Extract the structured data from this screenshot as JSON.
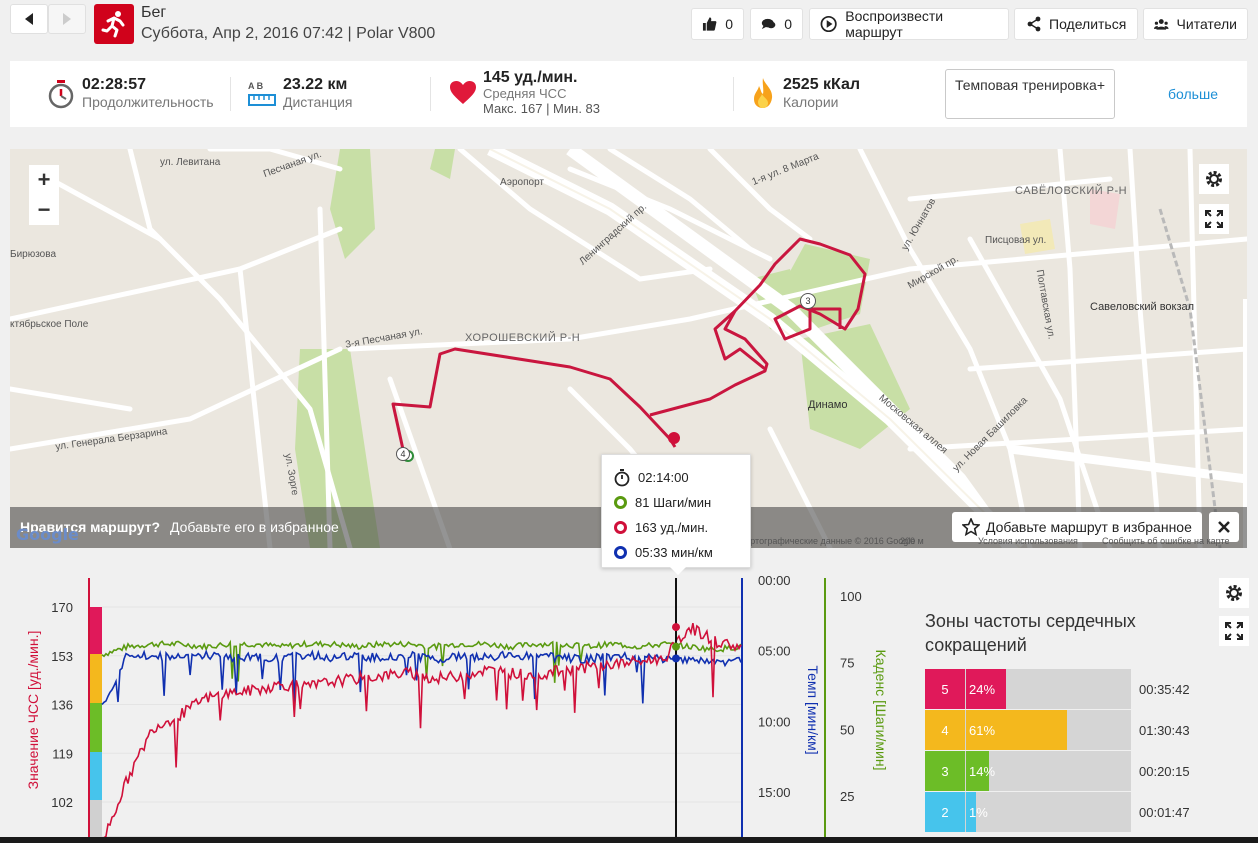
{
  "header": {
    "title": "Бег",
    "subtitle": "Суббота, Апр 2, 2016 07:42 | Polar V800",
    "likes": "0",
    "comments": "0",
    "play_route": "Воспроизвести маршрут",
    "share": "Поделиться",
    "readers": "Читатели",
    "icons": [
      "back-icon",
      "forward-icon",
      "running-icon",
      "thumbs-up-icon",
      "comment-icon",
      "play-icon",
      "share-icon",
      "readers-icon"
    ]
  },
  "summary": {
    "duration": {
      "value": "02:28:57",
      "label": "Продолжительность"
    },
    "distance": {
      "value": "23.22 км",
      "label": "Дистанция",
      "ab": "A  B"
    },
    "hr": {
      "value": "145 уд./мин.",
      "label": "Средняя ЧСС",
      "extra": "Макс. 167  |  Мин. 83"
    },
    "calories": {
      "value": "2525 кКал",
      "label": "Калории"
    },
    "tempo_button": "Темповая тренировка+",
    "more": "больше"
  },
  "map": {
    "fav_question": "Нравится маршрут?",
    "fav_hint": "Добавьте его в избранное",
    "fav_button": "Добавьте маршрут в избранное",
    "attribution": "Картографические данные © 2016 Google",
    "scale": "200 м",
    "terms": "Условия использования",
    "report": "Сообщить об ошибке на карте",
    "google": "Google",
    "markers": [
      "3",
      "4"
    ],
    "labels": [
      {
        "t": "ул. Левитана"
      },
      {
        "t": "Песчаная ул."
      },
      {
        "t": "Аэропорт"
      },
      {
        "t": "1-я ул. 8 Марта"
      },
      {
        "t": "Ленинградский пр."
      },
      {
        "t": "ХОРОШЕВСКИЙ Р-Н"
      },
      {
        "t": "3-я Песчаная ул."
      },
      {
        "t": "ктябрьское Поле"
      },
      {
        "t": "САВЁЛОВСКИЙ Р-Н"
      },
      {
        "t": "Савеловский вокзал"
      },
      {
        "t": "Динамо"
      },
      {
        "t": "Московская аллея"
      },
      {
        "t": "ул. Генерала Берзарина"
      },
      {
        "t": "ул. Зорге"
      },
      {
        "t": "Бирюзова"
      },
      {
        "t": "Писцовая ул."
      },
      {
        "t": "Полтавская ул."
      },
      {
        "t": "ул. Новая Башиловка"
      },
      {
        "t": "ул. Юннатов"
      },
      {
        "t": "Мирской пр."
      }
    ]
  },
  "tooltip": {
    "time": "02:14:00",
    "cadence": "81 Шаги/мин",
    "hr": "163 уд./мин.",
    "pace": "05:33 мин/км"
  },
  "chart": {
    "left_axis_label": "Значение ЧСС [уд./мин.]",
    "pace_axis_label": "Темп [мин/км]",
    "cadence_axis_label": "Каденс [Шаги/мин]",
    "colors": {
      "hr": "#d0103a",
      "pace": "#1030b0",
      "cadence": "#5a9a10"
    }
  },
  "chart_data": {
    "type": "line",
    "hr_ticks": [
      "170",
      "153",
      "136",
      "119",
      "102"
    ],
    "pace_ticks": [
      "00:00",
      "05:00",
      "10:00",
      "15:00"
    ],
    "cadence_ticks": [
      "100",
      "75",
      "50",
      "25"
    ],
    "hr_range": [
      85,
      170
    ],
    "pace_range_min_per_km": [
      0,
      18
    ],
    "cadence_range": [
      0,
      100
    ],
    "cursor_time": "02:14:00",
    "series": [
      {
        "name": "Значение ЧСС [уд./мин.]",
        "values": [
          88,
          110,
          128,
          132,
          138,
          140,
          141,
          143,
          142,
          144,
          145,
          146,
          147,
          145,
          146,
          148,
          147,
          146,
          148,
          149,
          150,
          151,
          152,
          163,
          158,
          156
        ]
      },
      {
        "name": "Темп [мин/км]",
        "values": [
          9.0,
          5.2,
          5.4,
          5.5,
          5.3,
          5.5,
          5.4,
          5.6,
          5.3,
          5.5,
          5.4,
          5.5,
          5.3,
          5.6,
          5.4,
          5.5,
          5.3,
          5.4,
          5.5,
          5.6,
          5.4,
          5.5,
          5.6,
          5.55,
          5.9,
          5.6
        ]
      },
      {
        "name": "Каденс [Шаги/мин]",
        "values": [
          78,
          81,
          82,
          82,
          81,
          82,
          82,
          81,
          82,
          82,
          81,
          82,
          82,
          81,
          82,
          82,
          81,
          82,
          82,
          81,
          82,
          81,
          82,
          81,
          80,
          81
        ]
      }
    ]
  },
  "zones": {
    "title": "Зоны частоты сердечных сокращений",
    "rows": [
      {
        "zone": "5",
        "pct": "24%",
        "frac": 0.24,
        "time": "00:35:42",
        "color": "#e0195a"
      },
      {
        "zone": "4",
        "pct": "61%",
        "frac": 0.61,
        "time": "01:30:43",
        "color": "#f4b81d"
      },
      {
        "zone": "3",
        "pct": "14%",
        "frac": 0.14,
        "time": "00:20:15",
        "color": "#6cbd27"
      },
      {
        "zone": "2",
        "pct": "1%",
        "frac": 0.01,
        "time": "00:01:47",
        "color": "#46c4ec"
      }
    ]
  }
}
